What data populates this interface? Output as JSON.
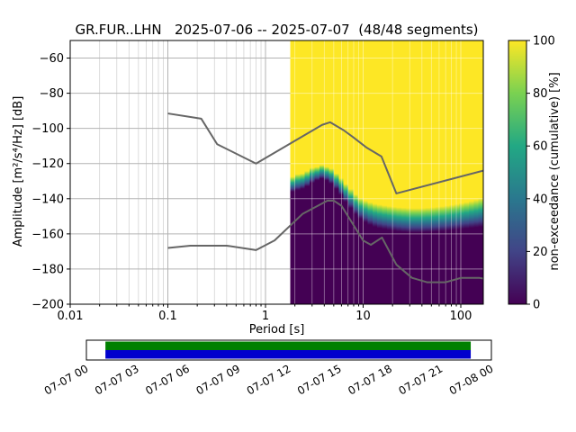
{
  "figure": {
    "title": "GR.FUR..LHN   2025-07-06 -- 2025-07-07  (48/48 segments)"
  },
  "chart_data": {
    "type": "heatmap",
    "title": "GR.FUR..LHN   2025-07-06 -- 2025-07-07  (48/48 segments)",
    "xlabel": "Period [s]",
    "ylabel": "Amplitude [m²/s⁴/Hz] [dB]",
    "xscale": "log",
    "xlim": [
      0.01,
      170
    ],
    "ylim": [
      -200,
      -50
    ],
    "xtick_values": [
      0.01,
      0.1,
      1,
      10,
      100
    ],
    "xtick_labels": [
      "0.01",
      "0.1",
      "1",
      "10",
      "100"
    ],
    "ytick_values": [
      -60,
      -80,
      -100,
      -120,
      -140,
      -160,
      -180,
      -200
    ],
    "ytick_labels": [
      "−60",
      "−80",
      "−100",
      "−120",
      "−140",
      "−160",
      "−180",
      "−200"
    ],
    "grid": {
      "major_color": "#b3b3b3",
      "minor_color": "#d4d4d4",
      "overlay_color": "rgba(255,255,255,0.45)"
    },
    "colorbar": {
      "label": "non-exceedance (cumulative) [%]",
      "tick_values": [
        0,
        20,
        40,
        60,
        80,
        100
      ],
      "tick_labels": [
        "0",
        "20",
        "40",
        "60",
        "80",
        "100"
      ],
      "colormap": "viridis",
      "stops": [
        {
          "t": 0.0,
          "color": "#440154"
        },
        {
          "t": 0.2,
          "color": "#414487"
        },
        {
          "t": 0.4,
          "color": "#2a788e"
        },
        {
          "t": 0.6,
          "color": "#22a884"
        },
        {
          "t": 0.8,
          "color": "#7ad151"
        },
        {
          "t": 1.0,
          "color": "#fde725"
        }
      ]
    },
    "histogram": {
      "fill_low": "#440154",
      "fill_high": "#fde725",
      "period_edges": [
        1.8,
        2.02,
        2.26,
        2.53,
        2.84,
        3.18,
        3.56,
        3.99,
        4.47,
        5.01,
        5.61,
        6.29,
        7.05,
        7.9,
        8.85,
        9.91,
        11.1,
        12.44,
        13.94,
        15.62,
        17.5,
        19.61,
        21.97,
        24.62,
        27.58,
        30.9,
        34.62,
        38.79,
        43.46,
        48.7,
        54.56,
        61.13,
        68.49,
        76.74,
        85.98,
        96.33,
        107.93,
        120.93,
        135.49,
        151.8,
        170.0
      ],
      "db_hi": [
        -127.5,
        -126.0,
        -125.6,
        -124.2,
        -122.4,
        -121.9,
        -120.8,
        -121.8,
        -122.8,
        -125.6,
        -128.3,
        -131.6,
        -134.4,
        -137.5,
        -139.6,
        -141.0,
        -142.0,
        -142.8,
        -143.3,
        -143.8,
        -144.2,
        -144.6,
        -144.9,
        -145.1,
        -145.3,
        -145.4,
        -145.4,
        -145.3,
        -145.1,
        -144.9,
        -144.6,
        -144.3,
        -143.9,
        -143.5,
        -143.0,
        -142.5,
        -141.9,
        -141.3,
        -140.6,
        -139.8
      ],
      "db_lo": [
        -136.0,
        -135.2,
        -134.4,
        -133.0,
        -131.0,
        -129.6,
        -128.6,
        -129.6,
        -131.4,
        -134.4,
        -137.8,
        -141.8,
        -145.4,
        -148.8,
        -151.4,
        -153.4,
        -154.9,
        -156.0,
        -156.8,
        -157.3,
        -157.8,
        -158.2,
        -158.6,
        -158.9,
        -159.1,
        -159.2,
        -159.2,
        -159.1,
        -159.0,
        -158.8,
        -158.6,
        -158.4,
        -158.1,
        -157.8,
        -157.5,
        -157.2,
        -156.9,
        -156.6,
        -156.3,
        -156.0
      ]
    },
    "noise_models": {
      "color": "#666666",
      "high": [
        [
          0.1,
          -91.5
        ],
        [
          0.22,
          -94.5
        ],
        [
          0.32,
          -109.0
        ],
        [
          0.8,
          -120.0
        ],
        [
          3.8,
          -98.0
        ],
        [
          4.6,
          -96.5
        ],
        [
          6.3,
          -101.0
        ],
        [
          7.9,
          -105.0
        ],
        [
          10.9,
          -111.0
        ],
        [
          15.4,
          -116.0
        ],
        [
          21.9,
          -137.0
        ],
        [
          170,
          -124.0
        ]
      ],
      "low": [
        [
          0.1,
          -168.0
        ],
        [
          0.17,
          -166.7
        ],
        [
          0.4,
          -166.7
        ],
        [
          0.8,
          -169.2
        ],
        [
          1.24,
          -163.7
        ],
        [
          2.4,
          -148.6
        ],
        [
          4.3,
          -141.1
        ],
        [
          5.0,
          -141.1
        ],
        [
          6.0,
          -144.0
        ],
        [
          10.0,
          -163.8
        ],
        [
          12.0,
          -166.2
        ],
        [
          15.6,
          -162.1
        ],
        [
          21.9,
          -177.5
        ],
        [
          31.6,
          -185.0
        ],
        [
          45.0,
          -187.5
        ],
        [
          70.0,
          -187.5
        ],
        [
          101.0,
          -185.0
        ],
        [
          154.0,
          -185.0
        ],
        [
          170.0,
          -185.4
        ]
      ]
    },
    "timeline": {
      "tick_labels": [
        "07-07 00",
        "07-07 03",
        "07-07 06",
        "07-07 09",
        "07-07 12",
        "07-07 15",
        "07-07 18",
        "07-07 21",
        "07-08 00"
      ],
      "coverage_color_top": "#008000",
      "coverage_color_bottom": "#0000cd",
      "coverage_start_frac": 0.047,
      "coverage_end_frac": 0.949
    }
  }
}
